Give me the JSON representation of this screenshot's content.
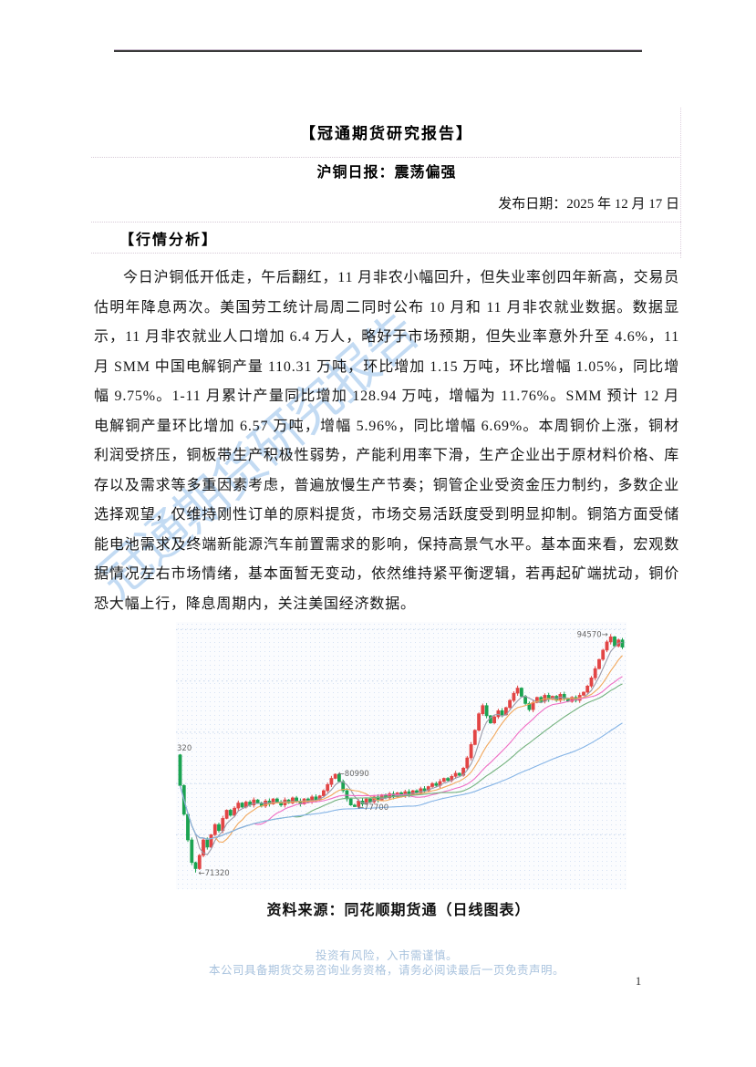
{
  "header": {
    "title": "【冠通期货研究报告】",
    "subtitle": "沪铜日报：震荡偏强",
    "publish_date": "发布日期：2025 年 12 月 17 日"
  },
  "section": {
    "heading": "【行情分析】",
    "paragraph": "今日沪铜低开低走，午后翻红，11 月非农小幅回升，但失业率创四年新高，交易员估明年降息两次。美国劳工统计局周二同时公布 10 月和 11 月非农就业数据。数据显示，11 月非农就业人口增加 6.4 万人，略好于市场预期，但失业率意外升至 4.6%，11 月 SMM 中国电解铜产量 110.31 万吨，环比增加 1.15 万吨，环比增幅 1.05%，同比增幅 9.75%。1-11 月累计产量同比增加 128.94 万吨，增幅为 11.76%。SMM 预计 12 月电解铜产量环比增加 6.57 万吨，增幅 5.96%，同比增幅 6.69%。本周铜价上涨，铜材利润受挤压，铜板带生产积极性弱势，产能利用率下滑，生产企业出于原材料价格、库存以及需求等多重因素考虑，普遍放慢生产节奏；铜管企业受资金压力制约，多数企业选择观望，仅维持刚性订单的原料提货，市场交易活跃度受到明显抑制。铜箔方面受储能电池需求及终端新能源汽车前置需求的影响，保持高景气水平。基本面来看，宏观数据情况左右市场情绪，基本面暂无变动，依然维持紧平衡逻辑，若再起矿端扰动，铜价恐大幅上行，降息周期内，关注美国经济数据。"
  },
  "watermark": {
    "text": "冠通期货研究报告"
  },
  "chart_caption": "资料来源：同花顺期货通（日线图表）",
  "footer": {
    "risk_line": "投资有风险，入市需谨慎。",
    "disclaimer_line": "本公司具备期货交易咨询业务资格，请务必阅读最后一页免责声明。",
    "page_number": "1"
  },
  "chart_data": {
    "type": "candlestick",
    "layout_hint": "daily K-line with 5 moving averages, dotted horizontal gridlines, no visible axes",
    "price_min": 69700,
    "price_max": 95750,
    "open0": 82800,
    "closes": [
      79800,
      77000,
      74500,
      72300,
      71700,
      73000,
      74500,
      73800,
      75000,
      76000,
      75400,
      76600,
      77400,
      76900,
      77600,
      78100,
      77700,
      78200,
      77900,
      78400,
      78100,
      77800,
      78300,
      78000,
      78500,
      78200,
      77900,
      78400,
      78100,
      78600,
      78300,
      78000,
      78500,
      78200,
      78700,
      78400,
      78800,
      79300,
      79900,
      80500,
      80900,
      80200,
      79300,
      78500,
      77900,
      77750,
      78300,
      78000,
      78500,
      78200,
      78700,
      78400,
      78900,
      78600,
      79000,
      78700,
      79100,
      78800,
      79200,
      78900,
      79300,
      79100,
      79500,
      79300,
      79700,
      80000,
      79800,
      80200,
      80500,
      80300,
      80700,
      81000,
      80800,
      81500,
      82500,
      83800,
      85200,
      86800,
      87600,
      86600,
      85900,
      86500,
      87100,
      86700,
      87400,
      88100,
      88800,
      89300,
      88500,
      87800,
      87200,
      87900,
      88400,
      88000,
      88600,
      88200,
      88500,
      88100,
      88700,
      88300,
      88000,
      88400,
      88100,
      88600,
      88900,
      89500,
      90300,
      91200,
      92100,
      93000,
      93800,
      94300,
      93400,
      94000,
      93300
    ],
    "extremes": {
      "4": {
        "low": 71320
      },
      "40": {
        "high": 80990
      },
      "45": {
        "low": 77700
      },
      "111": {
        "high": 94570
      }
    },
    "gridline_prices": [
      75000,
      80000,
      85000,
      90000,
      95000
    ],
    "ma_periods": [
      5,
      10,
      20,
      30,
      60
    ],
    "annotations": [
      {
        "text": "94570→",
        "price": 94570,
        "index": 111,
        "anchor": "end"
      },
      {
        "text": "←80990",
        "price": 80990,
        "index": 40,
        "anchor": "start"
      },
      {
        "text": "←77700",
        "price": 77700,
        "index": 45,
        "anchor": "start"
      },
      {
        "text": "←71320",
        "price": 71320,
        "index": 4,
        "anchor": "start"
      },
      {
        "text": "320",
        "price": 83480,
        "index": 0,
        "anchor": "edge-left"
      }
    ],
    "colors": {
      "up": "#e24545",
      "down": "#1ba351",
      "ma": [
        "#9a9aa8",
        "#f2a85c",
        "#f06ec4",
        "#74b27e",
        "#85b4e6"
      ],
      "grid": "#c3d4ea",
      "label": "#666666"
    }
  }
}
